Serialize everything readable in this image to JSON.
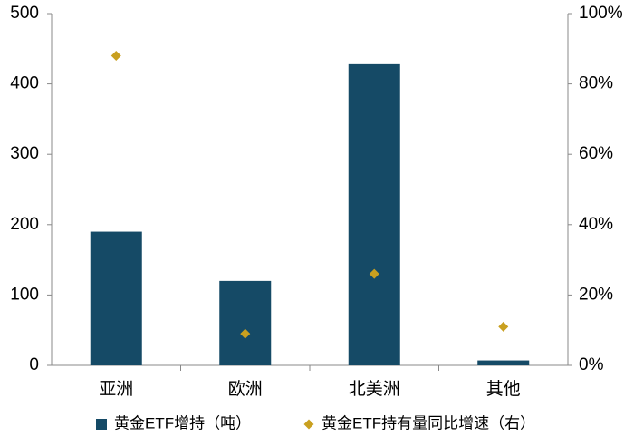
{
  "chart_data": {
    "type": "bar",
    "categories": [
      "亚洲",
      "欧洲",
      "北美洲",
      "其他"
    ],
    "series": [
      {
        "name": "黄金ETF增持（吨）",
        "color": "#154a66",
        "values": [
          190,
          120,
          428,
          7
        ]
      },
      {
        "name": "黄金ETF持有量同比增速（右）",
        "color": "#c9a020",
        "values": [
          88,
          9,
          26,
          11
        ],
        "axis": "y2",
        "marker": "diamond"
      }
    ],
    "ylim": [
      0,
      500
    ],
    "yticks": [
      0,
      100,
      200,
      300,
      400,
      500
    ],
    "y2lim": [
      0,
      100
    ],
    "y2ticks": [
      {
        "value": 0,
        "label": "0%"
      },
      {
        "value": 20,
        "label": "20%"
      },
      {
        "value": 40,
        "label": "40%"
      },
      {
        "value": 60,
        "label": "60%"
      },
      {
        "value": 80,
        "label": "80%"
      },
      {
        "value": 100,
        "label": "100%"
      }
    ],
    "legend": "bottom"
  }
}
